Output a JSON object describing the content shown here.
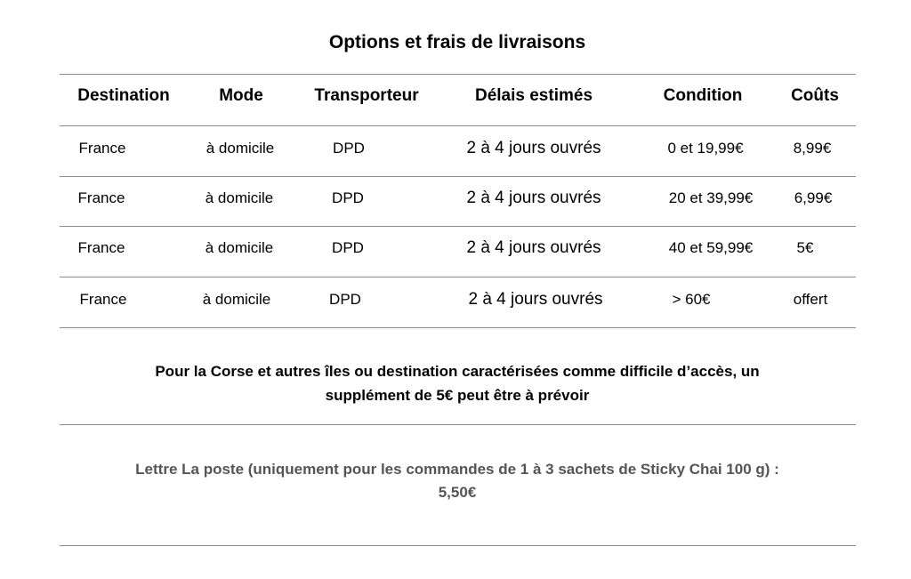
{
  "title": "Options et frais de livraisons",
  "table": {
    "headers": [
      "Destination",
      "Mode",
      "Transporteur",
      "Délais estimés",
      "Condition",
      "Coûts"
    ],
    "rows": [
      [
        "France",
        "à domicile",
        "DPD",
        "2 à 4 jours ouvrés",
        "0 et 19,99€",
        "8,99€"
      ],
      [
        "France",
        "à domicile",
        "DPD",
        "2 à 4 jours ouvrés",
        "20 et 39,99€",
        "6,99€"
      ],
      [
        "France",
        "à domicile",
        "DPD",
        "2 à 4 jours ouvrés",
        "40 et 59,99€",
        "5€"
      ],
      [
        "France",
        "à domicile",
        "DPD",
        "2 à 4 jours ouvrés",
        "> 60€",
        "offert"
      ]
    ]
  },
  "note": {
    "lines": [
      "Pour la Corse et autres îles ou destination caractérisées comme difficile d’accès, un",
      "supplément de 5€ peut être à prévoir"
    ]
  },
  "letter": {
    "lines": [
      "Lettre La poste (uniquement pour les commandes de 1 à 3 sachets de Sticky Chai 100 g) :",
      "5,50€"
    ]
  }
}
